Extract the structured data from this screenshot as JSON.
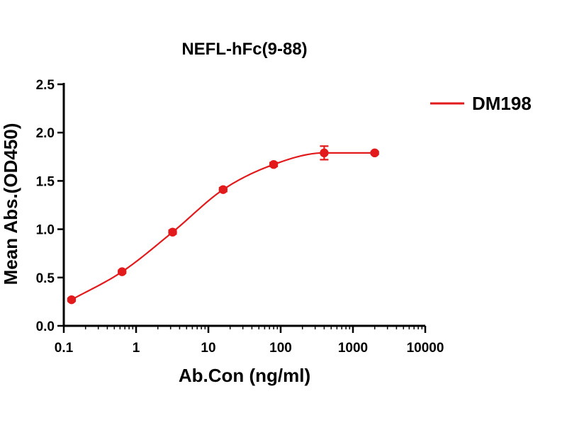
{
  "chart_data": {
    "type": "scatter",
    "title": "NEFL-hFc(9-88)",
    "xlabel": "Ab.Con (ng/ml)",
    "ylabel": "Mean Abs.(OD450)",
    "xscale": "log",
    "xlim": [
      0.1,
      10000
    ],
    "ylim": [
      0,
      2.5
    ],
    "x_ticks": [
      0.1,
      1,
      10,
      100,
      1000,
      10000
    ],
    "x_tick_labels": [
      "0.1",
      "1",
      "10",
      "100",
      "1000",
      "10000"
    ],
    "y_ticks": [
      0,
      0.5,
      1.0,
      1.5,
      2.0,
      2.5
    ],
    "y_tick_labels": [
      "0.0",
      "0.5",
      "1.0",
      "1.5",
      "2.0",
      "2.5"
    ],
    "grid": false,
    "legend_position": "top-right",
    "series": [
      {
        "name": "DM198",
        "color": "#e31a1c",
        "marker": "circle",
        "fit_curve": "four-parameter logistic",
        "x": [
          0.128,
          0.64,
          3.2,
          16,
          80,
          400,
          2000
        ],
        "y": [
          0.27,
          0.56,
          0.97,
          1.41,
          1.67,
          1.79,
          1.79
        ],
        "error": [
          0.015,
          0.015,
          0.02,
          0.02,
          0.02,
          0.07,
          0.015
        ]
      }
    ]
  }
}
